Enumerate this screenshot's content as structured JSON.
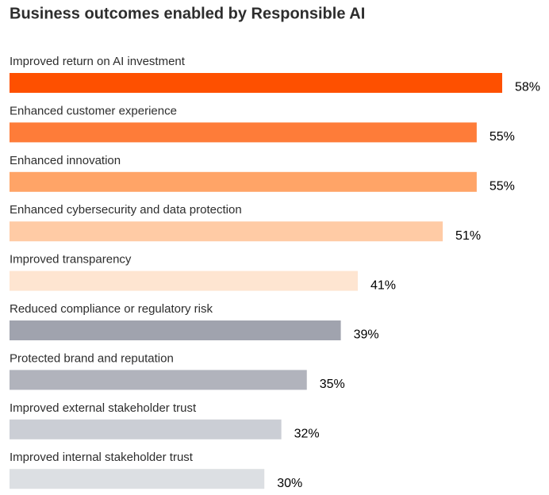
{
  "chart_data": {
    "type": "bar",
    "orientation": "horizontal",
    "title": "Business outcomes enabled by Responsible AI",
    "categories": [
      "Improved return on AI investment",
      "Enhanced customer experience",
      "Enhanced innovation",
      "Enhanced cybersecurity and data protection",
      "Improved transparency",
      "Reduced compliance or regulatory risk",
      "Protected brand and reputation",
      "Improved external stakeholder trust",
      "Improved internal stakeholder trust"
    ],
    "values": [
      58,
      55,
      55,
      51,
      41,
      39,
      35,
      32,
      30
    ],
    "value_labels": [
      "58%",
      "55%",
      "55%",
      "51%",
      "41%",
      "39%",
      "35%",
      "32%",
      "30%"
    ],
    "colors": [
      "#fe5000",
      "#fe7c39",
      "#ffa467",
      "#ffcba5",
      "#fee5d1",
      "#a0a3ae",
      "#b1b3bc",
      "#cbced5",
      "#dcdfe3"
    ]
  }
}
